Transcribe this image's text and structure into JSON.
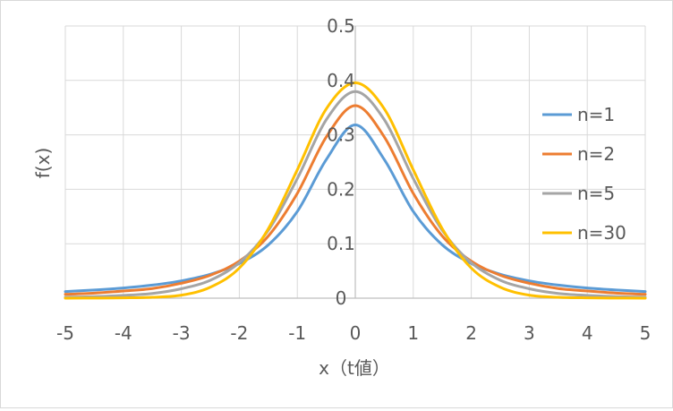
{
  "chart_data": {
    "type": "line",
    "xlabel": "x（t値）",
    "ylabel": "f(x)",
    "xlim": [
      -5,
      5
    ],
    "ylim": [
      0,
      0.5
    ],
    "x_ticks": [
      "-5",
      "-4",
      "-3",
      "-2",
      "-1",
      "0",
      "1",
      "2",
      "3",
      "4",
      "5"
    ],
    "y_ticks": [
      "0",
      "0.1",
      "0.2",
      "0.3",
      "0.4",
      "0.5"
    ],
    "grid": true,
    "legend_position": "right",
    "x": [
      -5,
      -4.5,
      -4,
      -3.5,
      -3,
      -2.5,
      -2,
      -1.5,
      -1,
      -0.5,
      0,
      0.5,
      1,
      1.5,
      2,
      2.5,
      3,
      3.5,
      4,
      4.5,
      5
    ],
    "series": [
      {
        "name": "n=1",
        "color": "#5B9BD5",
        "values": [
          0.0122,
          0.015,
          0.0187,
          0.024,
          0.0318,
          0.0439,
          0.0637,
          0.0979,
          0.1592,
          0.2546,
          0.3183,
          0.2546,
          0.1592,
          0.0979,
          0.0637,
          0.0439,
          0.0318,
          0.024,
          0.0187,
          0.015,
          0.0122
        ]
      },
      {
        "name": "n=2",
        "color": "#ED7D31",
        "values": [
          0.0071,
          0.0093,
          0.0131,
          0.0177,
          0.0274,
          0.0422,
          0.068,
          0.1141,
          0.1925,
          0.2962,
          0.3536,
          0.2962,
          0.1925,
          0.1141,
          0.068,
          0.0422,
          0.0274,
          0.0177,
          0.0131,
          0.0093,
          0.0071
        ]
      },
      {
        "name": "n=5",
        "color": "#A5A5A5",
        "values": [
          0.0018,
          0.0028,
          0.0051,
          0.0087,
          0.0173,
          0.0329,
          0.0651,
          0.1245,
          0.2197,
          0.3279,
          0.3796,
          0.3279,
          0.2197,
          0.1245,
          0.0651,
          0.0329,
          0.0173,
          0.0087,
          0.0051,
          0.0028,
          0.0018
        ]
      },
      {
        "name": "n=30",
        "color": "#FFC000",
        "values": [
          0.0,
          0.0002,
          0.0006,
          0.0017,
          0.0055,
          0.0201,
          0.0553,
          0.1275,
          0.2357,
          0.3478,
          0.3956,
          0.3478,
          0.2357,
          0.1275,
          0.0553,
          0.0201,
          0.0055,
          0.0017,
          0.0006,
          0.0002,
          0.0
        ]
      }
    ]
  }
}
